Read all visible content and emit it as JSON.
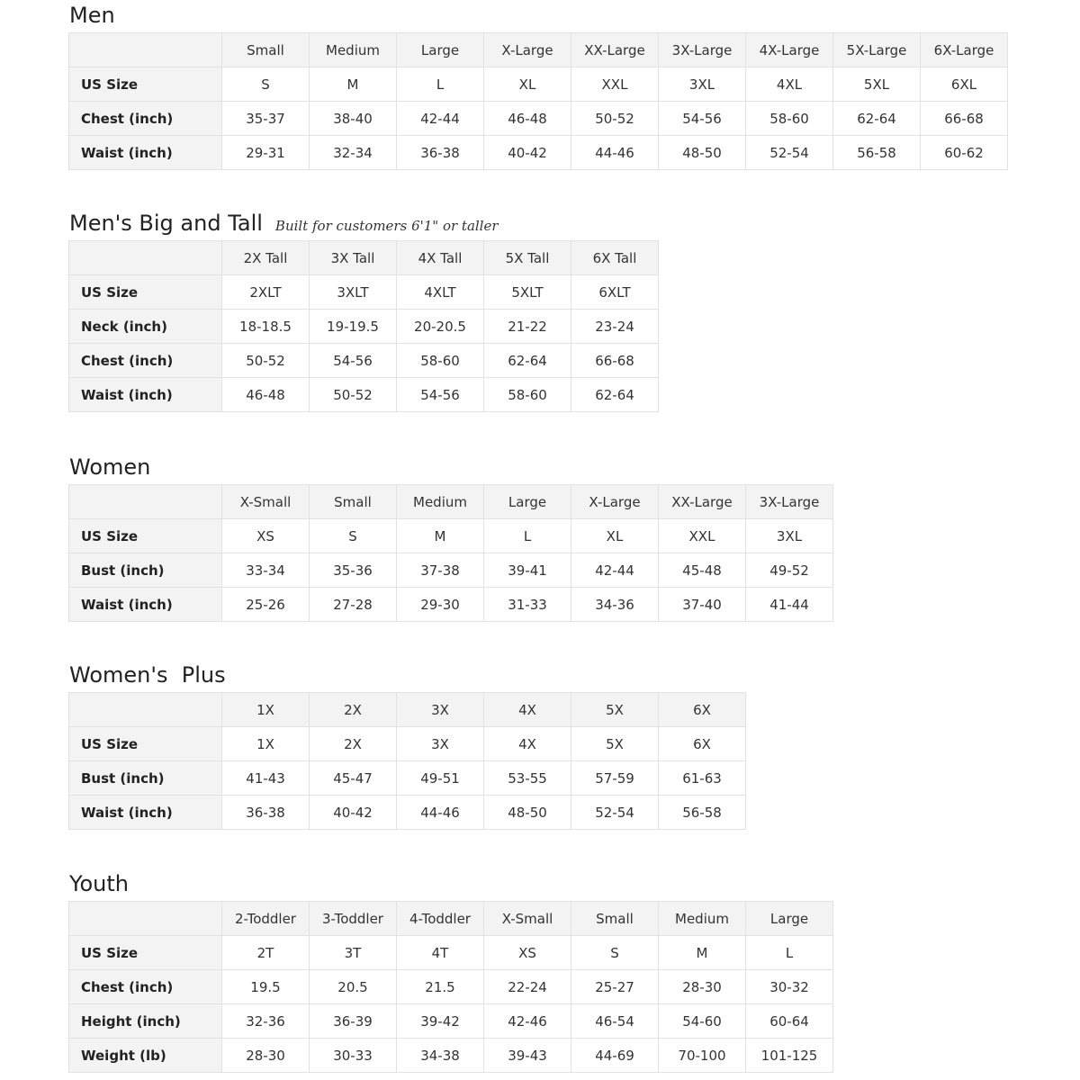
{
  "sections": [
    {
      "title": "Men",
      "note": "",
      "columns": [
        "Small",
        "Medium",
        "Large",
        "X-Large",
        "XX-Large",
        "3X-Large",
        "4X-Large",
        "5X-Large",
        "6X-Large"
      ],
      "rows": [
        {
          "label": "US Size",
          "values": [
            "S",
            "M",
            "L",
            "XL",
            "XXL",
            "3XL",
            "4XL",
            "5XL",
            "6XL"
          ]
        },
        {
          "label": "Chest (inch)",
          "values": [
            "35-37",
            "38-40",
            "42-44",
            "46-48",
            "50-52",
            "54-56",
            "58-60",
            "62-64",
            "66-68"
          ]
        },
        {
          "label": "Waist (inch)",
          "values": [
            "29-31",
            "32-34",
            "36-38",
            "40-42",
            "44-46",
            "48-50",
            "52-54",
            "56-58",
            "60-62"
          ]
        }
      ]
    },
    {
      "title": "Men's Big and Tall",
      "note": "Built for customers 6'1\" or taller",
      "columns": [
        "2X Tall",
        "3X Tall",
        "4X Tall",
        "5X Tall",
        "6X Tall"
      ],
      "rows": [
        {
          "label": "US Size",
          "values": [
            "2XLT",
            "3XLT",
            "4XLT",
            "5XLT",
            "6XLT"
          ]
        },
        {
          "label": "Neck (inch)",
          "values": [
            "18-18.5",
            "19-19.5",
            "20-20.5",
            "21-22",
            "23-24"
          ]
        },
        {
          "label": "Chest (inch)",
          "values": [
            "50-52",
            "54-56",
            "58-60",
            "62-64",
            "66-68"
          ]
        },
        {
          "label": "Waist (inch)",
          "values": [
            "46-48",
            "50-52",
            "54-56",
            "58-60",
            "62-64"
          ]
        }
      ]
    },
    {
      "title": "Women",
      "note": "",
      "columns": [
        "X-Small",
        "Small",
        "Medium",
        "Large",
        "X-Large",
        "XX-Large",
        "3X-Large"
      ],
      "rows": [
        {
          "label": "US Size",
          "values": [
            "XS",
            "S",
            "M",
            "L",
            "XL",
            "XXL",
            "3XL"
          ]
        },
        {
          "label": "Bust (inch)",
          "values": [
            "33-34",
            "35-36",
            "37-38",
            "39-41",
            "42-44",
            "45-48",
            "49-52"
          ]
        },
        {
          "label": "Waist (inch)",
          "values": [
            "25-26",
            "27-28",
            "29-30",
            "31-33",
            "34-36",
            "37-40",
            "41-44"
          ]
        }
      ]
    },
    {
      "title": "Women's  Plus",
      "note": "",
      "columns": [
        "1X",
        "2X",
        "3X",
        "4X",
        "5X",
        "6X"
      ],
      "rows": [
        {
          "label": "US Size",
          "values": [
            "1X",
            "2X",
            "3X",
            "4X",
            "5X",
            "6X"
          ]
        },
        {
          "label": "Bust (inch)",
          "values": [
            "41-43",
            "45-47",
            "49-51",
            "53-55",
            "57-59",
            "61-63"
          ]
        },
        {
          "label": "Waist (inch)",
          "values": [
            "36-38",
            "40-42",
            "44-46",
            "48-50",
            "52-54",
            "56-58"
          ]
        }
      ]
    },
    {
      "title": "Youth",
      "note": "",
      "columns": [
        "2-Toddler",
        "3-Toddler",
        "4-Toddler",
        "X-Small",
        "Small",
        "Medium",
        "Large"
      ],
      "rows": [
        {
          "label": "US Size",
          "values": [
            "2T",
            "3T",
            "4T",
            "XS",
            "S",
            "M",
            "L"
          ]
        },
        {
          "label": "Chest (inch)",
          "values": [
            "19.5",
            "20.5",
            "21.5",
            "22-24",
            "25-27",
            "28-30",
            "30-32"
          ]
        },
        {
          "label": "Height (inch)",
          "values": [
            "32-36",
            "36-39",
            "39-42",
            "42-46",
            "46-54",
            "54-60",
            "60-64"
          ]
        },
        {
          "label": "Weight (lb)",
          "values": [
            "28-30",
            "30-33",
            "34-38",
            "39-43",
            "44-69",
            "70-100",
            "101-125"
          ]
        }
      ]
    }
  ]
}
